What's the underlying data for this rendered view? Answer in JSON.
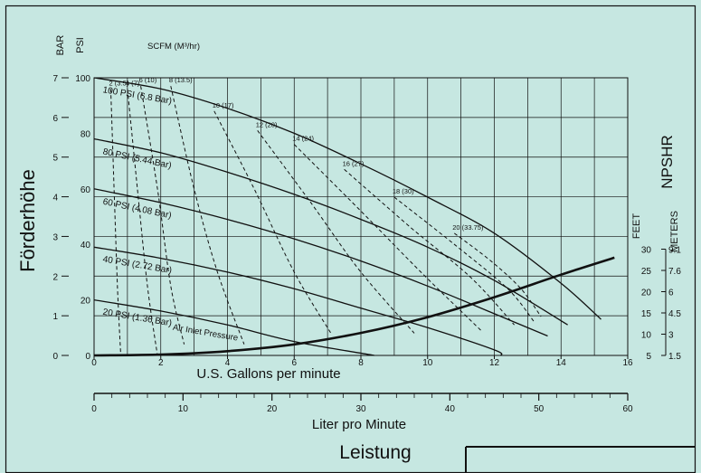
{
  "chart_data": {
    "type": "line",
    "title": "",
    "y_axis_title": "Förderhöhe",
    "x_axis_label": "U.S. Gallons per minute",
    "x2_axis_label": "Liter pro Minute",
    "caption": "Leistung",
    "right_axis_title": "NPSHR",
    "left_unit_bar": "BAR",
    "left_unit_psi": "PSI",
    "right_unit_feet": "FEET",
    "right_unit_meters": "METERS",
    "scfm_header": "SCFM (M³/hr)",
    "x_ticks": [
      "0",
      "2",
      "4",
      "6",
      "8",
      "10",
      "12",
      "14",
      "16"
    ],
    "x2_ticks": [
      "0",
      "10",
      "20",
      "30",
      "40",
      "50",
      "60"
    ],
    "bar_ticks": [
      "0",
      "1",
      "2",
      "3",
      "4",
      "5",
      "6",
      "7"
    ],
    "psi_ticks": [
      "0",
      "20",
      "40",
      "60",
      "80",
      "100"
    ],
    "npsh_feet_ticks": [
      "30",
      "25",
      "20",
      "15",
      "10",
      "5"
    ],
    "npsh_meter_ticks": [
      "9.1",
      "7.6",
      "6",
      "4.5",
      "3",
      "1.5"
    ],
    "xlim": [
      0,
      16
    ],
    "x2lim": [
      0,
      60
    ],
    "ylim_psi": [
      0,
      100
    ],
    "ylim_bar": [
      0,
      7
    ],
    "grid": true,
    "pressure_curves": [
      {
        "name": "100 PSI (6.8 Bar)",
        "x": [
          0,
          2,
          4,
          6,
          8,
          10,
          12,
          14,
          15.2
        ],
        "y": [
          100,
          96,
          89,
          80,
          69,
          57,
          44,
          26,
          13
        ]
      },
      {
        "name": "80 PSI (5.44 Bar)",
        "x": [
          0,
          2,
          4,
          6,
          8,
          10,
          12,
          14.2
        ],
        "y": [
          78,
          73,
          66,
          58,
          49,
          39,
          27,
          11
        ]
      },
      {
        "name": "60 PSI (4.08 Bar)",
        "x": [
          0,
          2,
          4,
          6,
          8,
          10,
          12,
          13.6
        ],
        "y": [
          60,
          55,
          49,
          42,
          34,
          25,
          15,
          7
        ]
      },
      {
        "name": "40 PSI (2.72 Bar)",
        "x": [
          0,
          2,
          4,
          6,
          8,
          10,
          12,
          12.2
        ],
        "y": [
          39,
          35,
          30,
          24,
          17,
          10,
          2,
          0
        ]
      },
      {
        "name": "20 PSI (1.36 Bar)",
        "x": [
          0,
          2,
          4,
          6,
          8.4
        ],
        "y": [
          20,
          16,
          11,
          5,
          0
        ]
      }
    ],
    "pressure_note": "Air Inlet Pressure",
    "air_curves": [
      {
        "name": "2 (3.5)",
        "x": [
          0.5,
          0.6,
          0.7,
          0.8
        ],
        "y": [
          96,
          60,
          25,
          0
        ]
      },
      {
        "name": "4 (7)",
        "x": [
          1.0,
          1.3,
          1.6,
          1.9
        ],
        "y": [
          96,
          60,
          25,
          0
        ]
      },
      {
        "name": "6 (10)",
        "x": [
          1.4,
          1.9,
          2.3,
          2.7
        ],
        "y": [
          97,
          60,
          25,
          4
        ]
      },
      {
        "name": "8 (13.5)",
        "x": [
          2.3,
          3.0,
          3.7,
          4.5
        ],
        "y": [
          97,
          60,
          30,
          4
        ]
      },
      {
        "name": "10 (17)",
        "x": [
          3.6,
          4.8,
          6.0,
          7.1
        ],
        "y": [
          88,
          60,
          30,
          8
        ]
      },
      {
        "name": "12 (20)",
        "x": [
          4.9,
          6.5,
          8.0,
          9.6
        ],
        "y": [
          81,
          55,
          30,
          8
        ]
      },
      {
        "name": "14 (24)",
        "x": [
          6.0,
          8.0,
          9.8,
          11.6
        ],
        "y": [
          76,
          52,
          30,
          9
        ]
      },
      {
        "name": "16 (27)",
        "x": [
          7.5,
          9.5,
          11.3,
          12.6
        ],
        "y": [
          67,
          46,
          28,
          11
        ]
      },
      {
        "name": "18 (30)",
        "x": [
          9.0,
          10.8,
          12.4,
          13.2
        ],
        "y": [
          57,
          40,
          24,
          12
        ]
      },
      {
        "name": "20 (33.75)",
        "x": [
          10.8,
          11.9,
          12.8,
          13.4
        ],
        "y": [
          44,
          34,
          24,
          14
        ]
      }
    ],
    "npshr_curve": {
      "x": [
        0,
        2,
        4,
        6,
        8,
        10,
        12,
        14,
        15.6
      ],
      "y_feet": [
        5,
        5.2,
        6,
        7.6,
        10.3,
        14,
        18.7,
        24,
        28
      ]
    }
  }
}
